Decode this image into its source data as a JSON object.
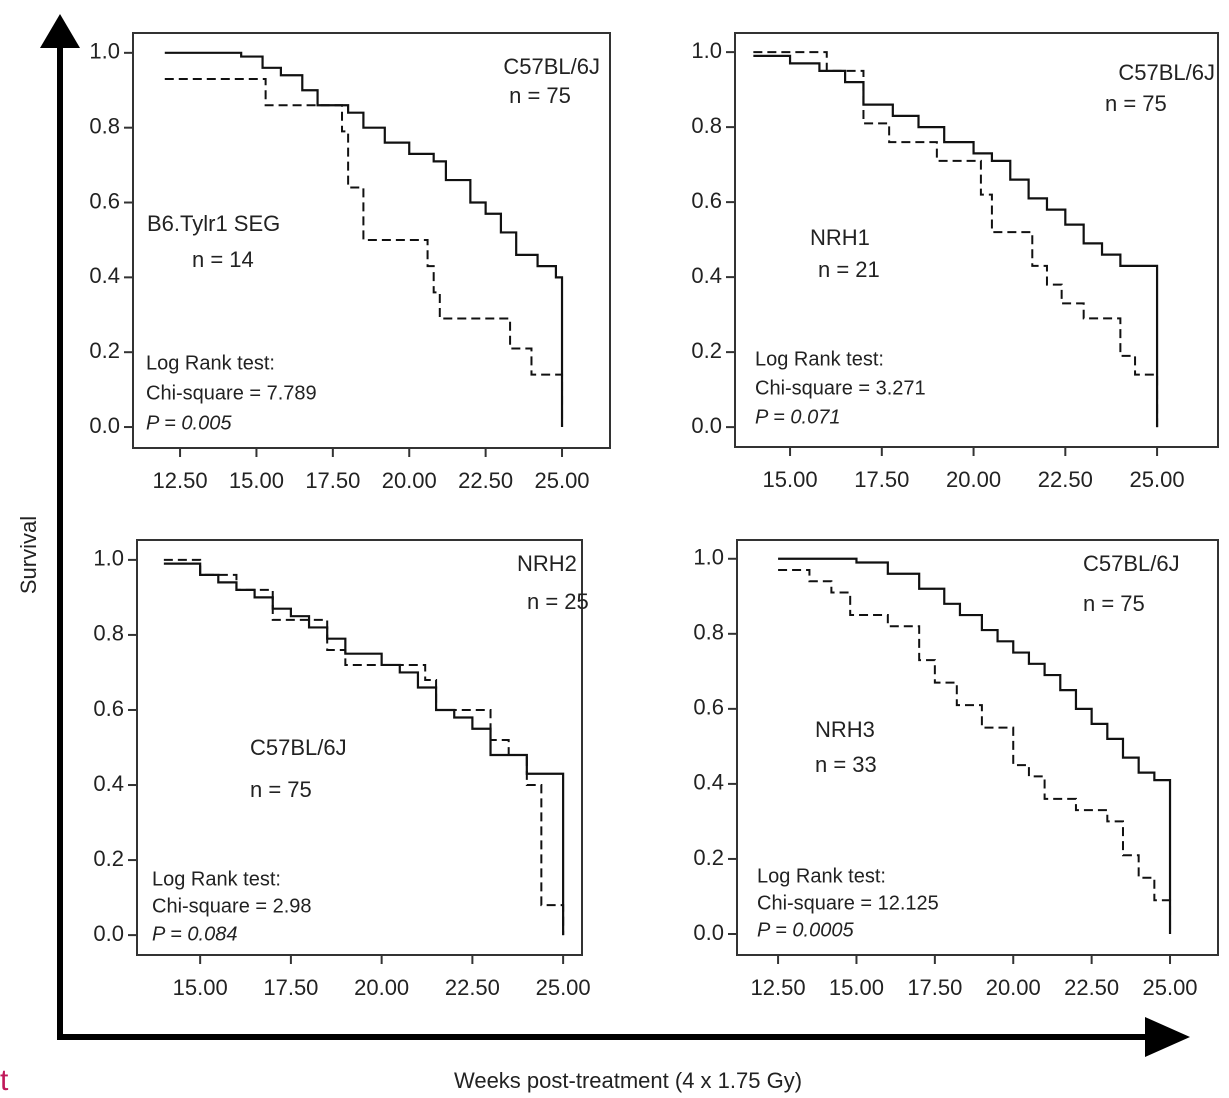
{
  "figure": {
    "ylabel": "Survival",
    "xlabel": "Weeks post-treatment (4 x 1.75 Gy)",
    "edge_text": "t"
  },
  "chart_data": [
    {
      "type": "step",
      "xlim": [
        10.96,
        26.57
      ],
      "ylim": [
        -0.056,
        1.053
      ],
      "xticks": [
        {
          "value": 12.5,
          "label": "12.50"
        },
        {
          "value": 15,
          "label": "15.00"
        },
        {
          "value": 17.5,
          "label": "17.50"
        },
        {
          "value": 20,
          "label": "20.00"
        },
        {
          "value": 22.5,
          "label": "22.50"
        },
        {
          "value": 25,
          "label": "25.00"
        }
      ],
      "yticks": [
        {
          "value": 0,
          "label": "0.0"
        },
        {
          "value": 0.2,
          "label": "0.2"
        },
        {
          "value": 0.4,
          "label": "0.4"
        },
        {
          "value": 0.6,
          "label": "0.6"
        },
        {
          "value": 0.8,
          "label": "0.8"
        },
        {
          "value": 1,
          "label": "1.0"
        }
      ],
      "series": [
        {
          "color": "#111",
          "dashed": false,
          "x": [
            12,
            14.5,
            15.2,
            15.8,
            16.5,
            17,
            18,
            18.5,
            19.2,
            20,
            20.8,
            21.2,
            22,
            22.5,
            23,
            23.5,
            24.2,
            24.8,
            25,
            25
          ],
          "values": [
            1.0,
            0.99,
            0.96,
            0.94,
            0.9,
            0.86,
            0.84,
            0.8,
            0.76,
            0.73,
            0.71,
            0.66,
            0.6,
            0.57,
            0.52,
            0.46,
            0.43,
            0.4,
            0.36,
            0.0
          ]
        },
        {
          "color": "#111",
          "dashed": true,
          "x": [
            12,
            15.3,
            17.8,
            18,
            18.5,
            20.6,
            20.8,
            21,
            23.3,
            24,
            25,
            25
          ],
          "values": [
            0.93,
            0.86,
            0.79,
            0.64,
            0.5,
            0.43,
            0.36,
            0.29,
            0.21,
            0.14,
            0.07,
            0.0
          ]
        }
      ],
      "annotations": [
        {
          "text": "C57BL/6J"
        },
        {
          "text": "n = 75"
        },
        {
          "text": "B6.Tylr1 SEG"
        },
        {
          "text": "n = 14"
        },
        {
          "text": "Log Rank test:"
        },
        {
          "text": "Chi-square = 7.789"
        },
        {
          "text": "P = 0.005",
          "italic": true
        }
      ]
    },
    {
      "type": "step",
      "xlim": [
        13.5,
        26.66
      ],
      "ylim": [
        -0.053,
        1.051
      ],
      "xticks": [
        {
          "value": 15,
          "label": "15.00"
        },
        {
          "value": 17.5,
          "label": "17.50"
        },
        {
          "value": 20,
          "label": "20.00"
        },
        {
          "value": 22.5,
          "label": "22.50"
        },
        {
          "value": 25,
          "label": "25.00"
        }
      ],
      "yticks": [
        {
          "value": 0,
          "label": "0.0"
        },
        {
          "value": 0.2,
          "label": "0.2"
        },
        {
          "value": 0.4,
          "label": "0.4"
        },
        {
          "value": 0.6,
          "label": "0.6"
        },
        {
          "value": 0.8,
          "label": "0.8"
        },
        {
          "value": 1,
          "label": "1.0"
        }
      ],
      "series": [
        {
          "color": "#111",
          "dashed": false,
          "x": [
            14,
            15,
            15.8,
            16.5,
            17,
            17.8,
            18.5,
            19.2,
            20,
            20.5,
            21,
            21.5,
            22,
            22.5,
            23,
            23.5,
            24,
            25,
            25
          ],
          "values": [
            0.99,
            0.97,
            0.95,
            0.92,
            0.86,
            0.83,
            0.8,
            0.76,
            0.73,
            0.71,
            0.66,
            0.61,
            0.58,
            0.54,
            0.49,
            0.46,
            0.43,
            0.4,
            0.0
          ]
        },
        {
          "color": "#111",
          "dashed": true,
          "x": [
            14,
            16,
            17,
            17.7,
            19,
            20.2,
            20.5,
            21.6,
            22,
            22.4,
            23,
            24,
            24.4,
            25
          ],
          "values": [
            1.0,
            0.95,
            0.81,
            0.76,
            0.71,
            0.62,
            0.52,
            0.43,
            0.38,
            0.33,
            0.29,
            0.19,
            0.14,
            0.0
          ]
        }
      ],
      "annotations": [
        {
          "text": "C57BL/6J"
        },
        {
          "text": "n = 75"
        },
        {
          "text": "NRH1"
        },
        {
          "text": "n = 21"
        },
        {
          "text": "Log Rank test:"
        },
        {
          "text": "Chi-square = 3.271"
        },
        {
          "text": "P = 0.071",
          "italic": true
        }
      ]
    },
    {
      "type": "step",
      "xlim": [
        13.26,
        25.52
      ],
      "ylim": [
        -0.053,
        1.053
      ],
      "xticks": [
        {
          "value": 15,
          "label": "15.00"
        },
        {
          "value": 17.5,
          "label": "17.50"
        },
        {
          "value": 20,
          "label": "20.00"
        },
        {
          "value": 22.5,
          "label": "22.50"
        },
        {
          "value": 25,
          "label": "25.00"
        }
      ],
      "yticks": [
        {
          "value": 0,
          "label": "0.0"
        },
        {
          "value": 0.2,
          "label": "0.2"
        },
        {
          "value": 0.4,
          "label": "0.4"
        },
        {
          "value": 0.6,
          "label": "0.6"
        },
        {
          "value": 0.8,
          "label": "0.8"
        },
        {
          "value": 1,
          "label": "1.0"
        }
      ],
      "series": [
        {
          "color": "#111",
          "dashed": false,
          "x": [
            14,
            15,
            15.5,
            16,
            16.5,
            17,
            17.5,
            18,
            18.5,
            19,
            20,
            20.5,
            21,
            21.5,
            22,
            22.5,
            23,
            24,
            25,
            25
          ],
          "values": [
            0.99,
            0.96,
            0.94,
            0.92,
            0.9,
            0.87,
            0.85,
            0.82,
            0.79,
            0.75,
            0.72,
            0.7,
            0.66,
            0.6,
            0.58,
            0.55,
            0.48,
            0.43,
            0.37,
            0.0
          ]
        },
        {
          "color": "#111",
          "dashed": true,
          "x": [
            14,
            15,
            16,
            17,
            18.5,
            19,
            21.2,
            21.5,
            23,
            23.5,
            24,
            24.4,
            25
          ],
          "values": [
            1.0,
            0.96,
            0.92,
            0.84,
            0.76,
            0.72,
            0.68,
            0.6,
            0.52,
            0.48,
            0.4,
            0.08,
            0.0
          ]
        }
      ],
      "annotations": [
        {
          "text": "NRH2"
        },
        {
          "text": "n = 25"
        },
        {
          "text": "C57BL/6J"
        },
        {
          "text": "n = 75"
        },
        {
          "text": "Log Rank test:"
        },
        {
          "text": "Chi-square = 2.98"
        },
        {
          "text": "P = 0.084",
          "italic": true
        }
      ]
    },
    {
      "type": "step",
      "xlim": [
        11.19,
        26.53
      ],
      "ylim": [
        -0.056,
        1.05
      ],
      "xticks": [
        {
          "value": 12.5,
          "label": "12.50"
        },
        {
          "value": 15,
          "label": "15.00"
        },
        {
          "value": 17.5,
          "label": "17.50"
        },
        {
          "value": 20,
          "label": "20.00"
        },
        {
          "value": 22.5,
          "label": "22.50"
        },
        {
          "value": 25,
          "label": "25.00"
        }
      ],
      "yticks": [
        {
          "value": 0,
          "label": "0.0"
        },
        {
          "value": 0.2,
          "label": "0.2"
        },
        {
          "value": 0.4,
          "label": "0.4"
        },
        {
          "value": 0.6,
          "label": "0.6"
        },
        {
          "value": 0.8,
          "label": "0.8"
        },
        {
          "value": 1,
          "label": "1.0"
        }
      ],
      "series": [
        {
          "color": "#111",
          "dashed": false,
          "x": [
            12.5,
            15,
            16,
            17,
            17.8,
            18.3,
            19,
            19.5,
            20,
            20.5,
            21,
            21.5,
            22,
            22.5,
            23,
            23.5,
            24,
            24.5,
            25,
            25
          ],
          "values": [
            1.0,
            0.99,
            0.96,
            0.92,
            0.88,
            0.85,
            0.81,
            0.78,
            0.75,
            0.72,
            0.69,
            0.65,
            0.6,
            0.56,
            0.52,
            0.47,
            0.43,
            0.41,
            0.37,
            0.0
          ]
        },
        {
          "color": "#111",
          "dashed": true,
          "x": [
            12.5,
            13.5,
            14.2,
            14.8,
            16,
            17,
            17.5,
            18.2,
            19,
            20,
            20.5,
            21,
            22,
            23,
            23.5,
            24,
            24.5,
            25,
            25
          ],
          "values": [
            0.97,
            0.94,
            0.91,
            0.85,
            0.82,
            0.73,
            0.67,
            0.61,
            0.55,
            0.45,
            0.42,
            0.36,
            0.33,
            0.3,
            0.21,
            0.15,
            0.09,
            0.06,
            0.0
          ]
        }
      ],
      "annotations": [
        {
          "text": "C57BL/6J"
        },
        {
          "text": "n = 75"
        },
        {
          "text": "NRH3"
        },
        {
          "text": "n = 33"
        },
        {
          "text": "Log Rank test:"
        },
        {
          "text": "Chi-square = 12.125"
        },
        {
          "text": "P = 0.0005",
          "italic": true
        }
      ]
    }
  ]
}
